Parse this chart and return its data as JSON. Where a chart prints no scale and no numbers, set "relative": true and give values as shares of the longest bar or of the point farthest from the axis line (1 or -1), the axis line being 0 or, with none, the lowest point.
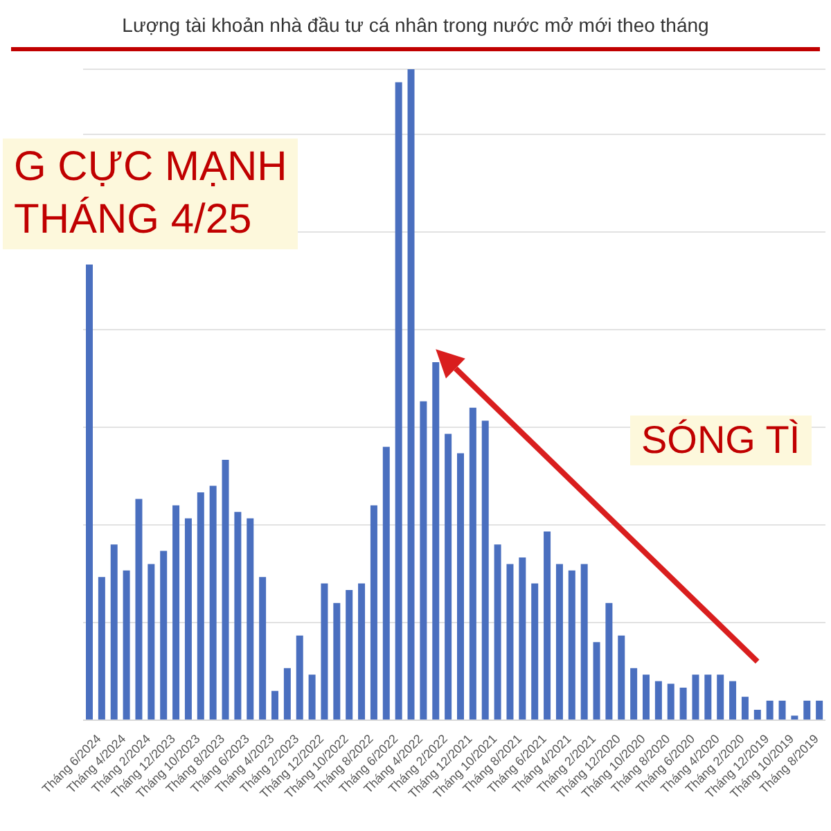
{
  "chart_data": {
    "type": "bar",
    "title": "Lượng tài khoản nhà đầu tư cá nhân trong nước mở mới theo tháng",
    "relative": true,
    "grid": "y",
    "color": "#4a6fbf",
    "categories": [
      null,
      "Tháng 6/2024",
      null,
      "Tháng 4/2024",
      null,
      "Tháng 2/2024",
      null,
      "Tháng 12/2023",
      null,
      "Tháng 10/2023",
      null,
      "Tháng 8/2023",
      null,
      "Tháng 6/2023",
      null,
      "Tháng 4/2023",
      null,
      "Tháng 2/2023",
      null,
      "Tháng 12/2022",
      null,
      "Tháng 10/2022",
      null,
      "Tháng 8/2022",
      null,
      "Tháng 6/2022",
      null,
      "Tháng 4/2022",
      null,
      "Tháng 2/2022",
      null,
      "Tháng 12/2021",
      null,
      "Tháng 10/2021",
      null,
      "Tháng 8/2021",
      null,
      "Tháng 6/2021",
      null,
      "Tháng 4/2021",
      null,
      "Tháng 2/2021",
      null,
      "Tháng 12/2020",
      null,
      "Tháng 10/2020",
      null,
      "Tháng 8/2020",
      null,
      "Tháng 6/2020",
      null,
      "Tháng 4/2020",
      null,
      "Tháng 2/2020",
      null,
      "Tháng 12/2019",
      null,
      "Tháng 10/2019",
      null,
      "Tháng 8/2019"
    ],
    "values": [
      0.7,
      0.22,
      0.27,
      0.23,
      0.34,
      0.24,
      0.26,
      0.33,
      0.31,
      0.35,
      0.36,
      0.4,
      0.32,
      0.31,
      0.22,
      0.045,
      0.08,
      0.13,
      0.07,
      0.21,
      0.18,
      0.2,
      0.21,
      0.33,
      0.42,
      0.98,
      1,
      0.49,
      0.55,
      0.44,
      0.41,
      0.48,
      0.46,
      0.27,
      0.24,
      0.25,
      0.21,
      0.29,
      0.24,
      0.23,
      0.24,
      0.12,
      0.18,
      0.13,
      0.08,
      0.07,
      0.06,
      0.056,
      0.05,
      0.07,
      0.07,
      0.07,
      0.06,
      0.036,
      0.016,
      0.03,
      0.03,
      0.007,
      0.03,
      0.03
    ],
    "annotations": [
      "G CỰC MẠNH",
      "THÁNG 4/25",
      "SÓNG TÌ"
    ]
  }
}
